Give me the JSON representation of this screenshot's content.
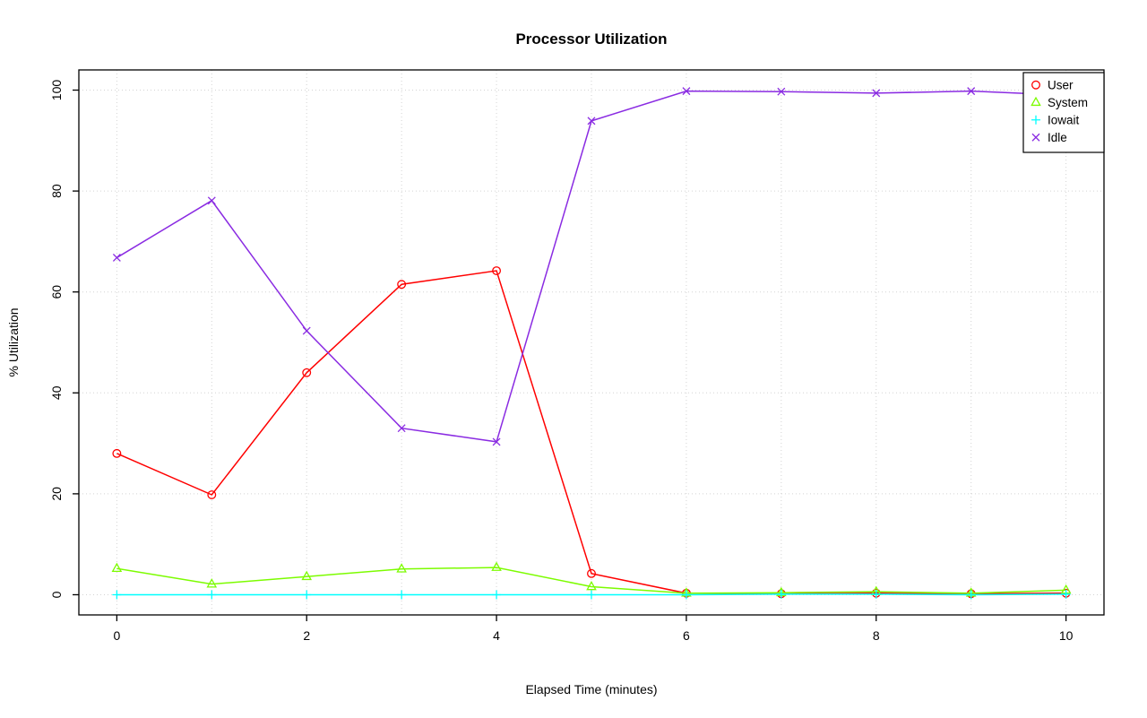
{
  "page": {
    "background": "#ffffff"
  },
  "chart_data": {
    "type": "line",
    "title": "Processor Utilization",
    "xlabel": "Elapsed Time (minutes)",
    "ylabel": "% Utilization",
    "x": [
      0,
      1,
      2,
      3,
      4,
      5,
      6,
      7,
      8,
      9,
      10
    ],
    "xlim": [
      -0.4,
      10.4
    ],
    "ylim": [
      -4,
      104
    ],
    "x_ticks": [
      0,
      2,
      4,
      6,
      8,
      10
    ],
    "y_ticks": [
      0,
      20,
      40,
      60,
      80,
      100
    ],
    "grid": {
      "x_lines": [
        0,
        1,
        2,
        3,
        4,
        5,
        6,
        7,
        8,
        9,
        10
      ],
      "y_lines": [
        0,
        20,
        40,
        60,
        80,
        100
      ],
      "color": "#d3d3d3",
      "style": "dotted",
      "on": true
    },
    "axis_color": "#000000",
    "legend": {
      "position": "top-right",
      "border": true
    },
    "series": [
      {
        "name": "User",
        "color": "#ff0000",
        "marker": "circle",
        "values": [
          28,
          19.8,
          44,
          61.5,
          64.2,
          4.2,
          0.3,
          0.2,
          0.3,
          0.2,
          0.3
        ]
      },
      {
        "name": "System",
        "color": "#7cfc00",
        "marker": "triangle",
        "values": [
          5.2,
          2.1,
          3.6,
          5.1,
          5.4,
          1.6,
          0.3,
          0.4,
          0.6,
          0.3,
          0.9
        ]
      },
      {
        "name": "Iowait",
        "color": "#00ffff",
        "marker": "plus",
        "values": [
          0,
          0,
          0,
          0,
          0,
          0,
          0,
          0.1,
          0.1,
          0,
          0.1
        ]
      },
      {
        "name": "Idle",
        "color": "#8a2be2",
        "marker": "x",
        "values": [
          66.8,
          78.1,
          52.3,
          33,
          30.3,
          93.9,
          99.8,
          99.7,
          99.4,
          99.8,
          99
        ]
      }
    ]
  }
}
